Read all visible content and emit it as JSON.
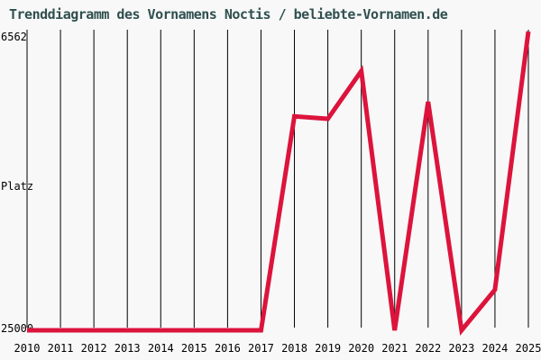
{
  "header": {
    "title": "Trenddiagramm des Vornamens Noctis / beliebte-Vornamen.de"
  },
  "axis": {
    "y_top_label": "6562",
    "y_title": "Platz",
    "y_bottom_label": "25000"
  },
  "colors": {
    "background": "#F8F8F8",
    "title": "#2F4F4F",
    "line": "#DC143C",
    "grid": "#000000",
    "tick_text": "#000000"
  },
  "chart_data": {
    "type": "line",
    "title": "Trenddiagramm des Vornamens Noctis / beliebte-Vornamen.de",
    "xlabel": "",
    "ylabel": "Platz",
    "x": [
      "2010",
      "2011",
      "2012",
      "2013",
      "2014",
      "2015",
      "2016",
      "2017",
      "2018",
      "2019",
      "2020",
      "2021",
      "2022",
      "2023",
      "2024",
      "2025"
    ],
    "series": [
      {
        "name": "Noctis",
        "values": [
          25000,
          25000,
          25000,
          25000,
          25000,
          25000,
          25000,
          25000,
          11800,
          11950,
          9000,
          25000,
          10900,
          25000,
          22500,
          6562
        ]
      }
    ],
    "y_axis": {
      "inverted": true,
      "top_value": 6562,
      "bottom_value": 25000,
      "tick_labels": [
        "6562",
        "25000"
      ]
    },
    "grid": "vertical-only",
    "legend": "none"
  }
}
